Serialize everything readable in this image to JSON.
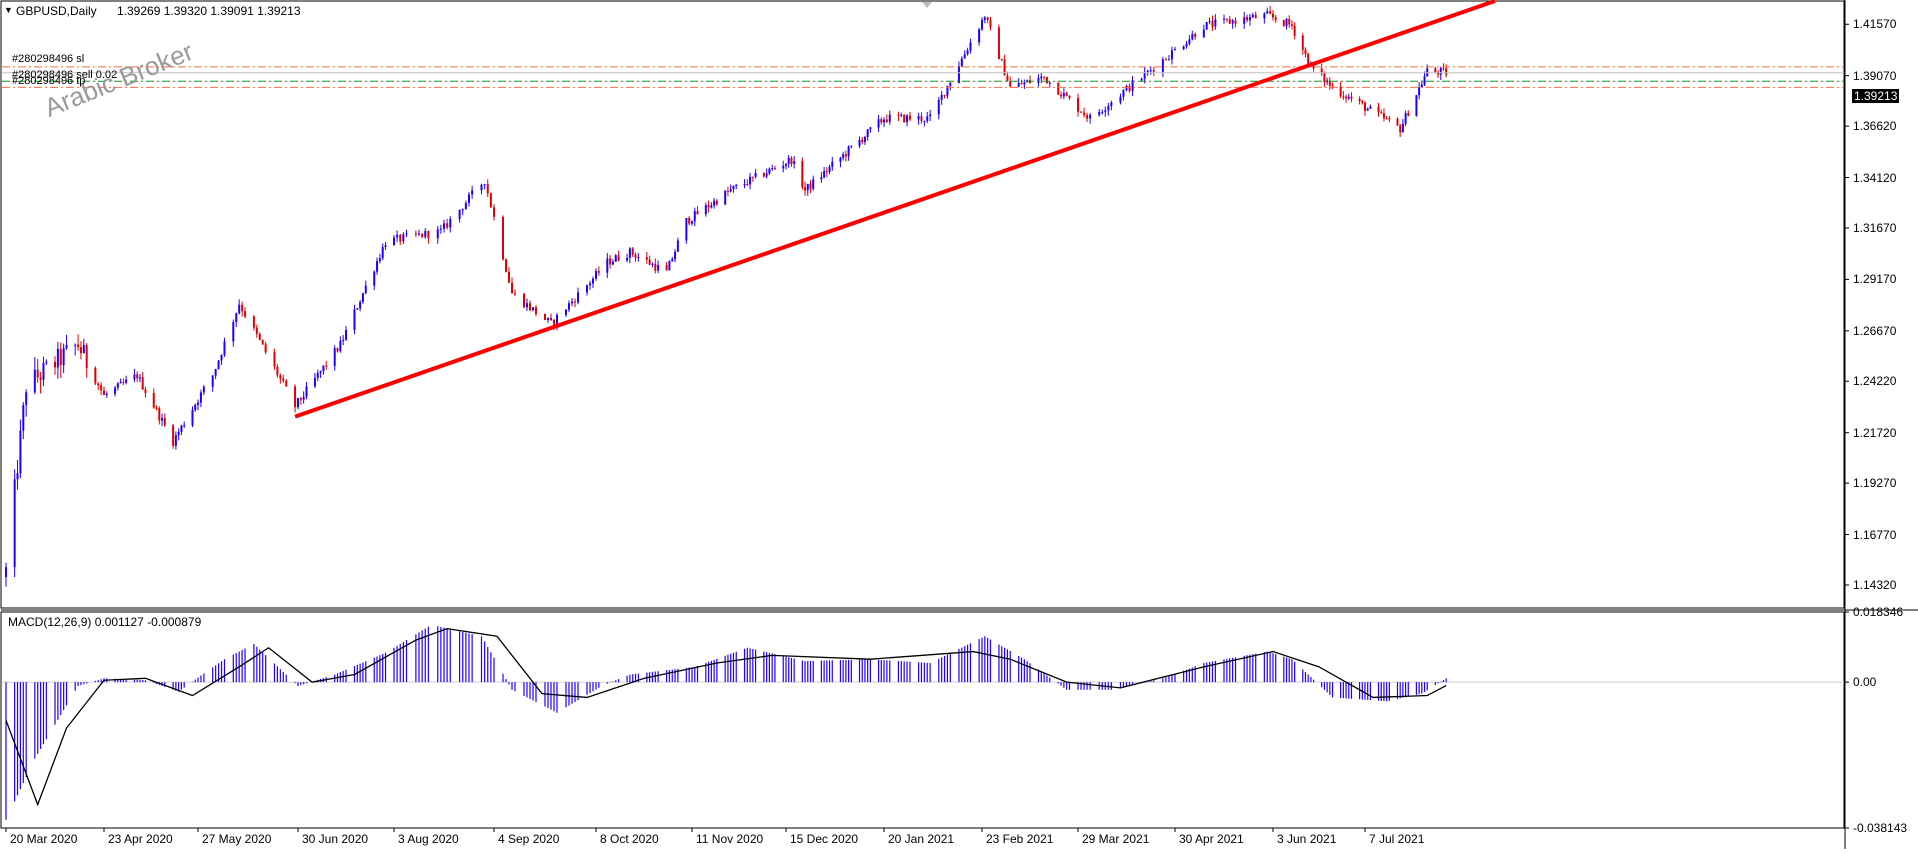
{
  "chart_data": [
    {
      "type": "candlestick",
      "symbol": "GBPUSD",
      "timeframe": "Daily",
      "header": {
        "title": "GBPUSD,Daily",
        "values": "1.39269 1.39320 1.39091 1.39213"
      },
      "ohlc_last": {
        "open": 1.39269,
        "high": 1.3932,
        "low": 1.39091,
        "close": 1.39213
      },
      "current_price": "1.39213",
      "ylim": [
        1.132,
        1.427
      ],
      "y_ticks": [
        "1.41570",
        "1.39070",
        "1.36620",
        "1.34120",
        "1.31670",
        "1.29170",
        "1.26670",
        "1.24220",
        "1.21720",
        "1.19270",
        "1.16770",
        "1.14320"
      ],
      "x_ticks": [
        "20 Mar 2020",
        "23 Apr 2020",
        "27 May 2020",
        "30 Jun 2020",
        "3 Aug 2020",
        "4 Sep 2020",
        "8 Oct 2020",
        "11 Nov 2020",
        "15 Dec 2020",
        "20 Jan 2021",
        "23 Feb 2021",
        "29 Mar 2021",
        "30 Apr 2021",
        "3 Jun 2021",
        "7 Jul 2021"
      ],
      "price_path": [
        [
          "2020-03-20",
          1.15
        ],
        [
          "2020-03-27",
          1.24
        ],
        [
          "2020-04-14",
          1.26
        ],
        [
          "2020-04-23",
          1.235
        ],
        [
          "2020-05-05",
          1.245
        ],
        [
          "2020-05-18",
          1.213
        ],
        [
          "2020-06-01",
          1.245
        ],
        [
          "2020-06-10",
          1.28
        ],
        [
          "2020-06-29",
          1.23
        ],
        [
          "2020-07-15",
          1.26
        ],
        [
          "2020-07-31",
          1.31
        ],
        [
          "2020-08-18",
          1.315
        ],
        [
          "2020-09-01",
          1.34
        ],
        [
          "2020-09-10",
          1.285
        ],
        [
          "2020-09-23",
          1.27
        ],
        [
          "2020-10-12",
          1.3
        ],
        [
          "2020-10-20",
          1.305
        ],
        [
          "2020-11-02",
          1.295
        ],
        [
          "2020-11-09",
          1.32
        ],
        [
          "2020-11-25",
          1.335
        ],
        [
          "2020-12-17",
          1.35
        ],
        [
          "2020-12-22",
          1.335
        ],
        [
          "2021-01-20",
          1.37
        ],
        [
          "2021-02-05",
          1.37
        ],
        [
          "2021-02-24",
          1.42
        ],
        [
          "2021-03-05",
          1.385
        ],
        [
          "2021-03-17",
          1.39
        ],
        [
          "2021-04-02",
          1.37
        ],
        [
          "2021-04-19",
          1.39
        ],
        [
          "2021-05-10",
          1.415
        ],
        [
          "2021-06-01",
          1.42
        ],
        [
          "2021-06-10",
          1.415
        ],
        [
          "2021-06-17",
          1.395
        ],
        [
          "2021-06-25",
          1.385
        ],
        [
          "2021-07-20",
          1.365
        ],
        [
          "2021-07-30",
          1.393
        ],
        [
          "2021-08-06",
          1.3921
        ]
      ],
      "trendline": {
        "color": "#ff0000",
        "from": [
          "2020-06-29",
          1.225
        ],
        "to": [
          "2021-08-24",
          1.427
        ]
      },
      "order_lines": [
        {
          "label": "#280298496 sl",
          "price": 1.395,
          "color": "#ff6a3d",
          "style": "dash-dot"
        },
        {
          "label": "#280298496 sell 0.02",
          "price": 1.388,
          "color": "#1a8a1a",
          "style": "dash-dot"
        },
        {
          "label": "#280298496 tp",
          "price": 1.385,
          "color": "#ff6a3d",
          "style": "dash-dot"
        }
      ],
      "colors": {
        "bull": "#1f00ff",
        "bear": "#e10000",
        "grid": "#c8c8c8"
      }
    },
    {
      "type": "macd",
      "header": {
        "title": "MACD(12,26,9) 0.001127 -0.000879"
      },
      "params": [
        12,
        26,
        9
      ],
      "main_value": 0.001127,
      "signal_value": -0.000879,
      "ylim": [
        -0.038143,
        0.018346
      ],
      "y_ticks": [
        "0.018346",
        "0.00",
        "-0.038143"
      ],
      "histogram_path": [
        [
          "2020-03-20",
          -0.036
        ],
        [
          "2020-03-30",
          -0.02
        ],
        [
          "2020-04-14",
          -0.001
        ],
        [
          "2020-04-23",
          0.001
        ],
        [
          "2020-05-08",
          0.0005
        ],
        [
          "2020-05-20",
          -0.0025
        ],
        [
          "2020-06-05",
          0.006
        ],
        [
          "2020-06-15",
          0.01
        ],
        [
          "2020-06-30",
          -0.001
        ],
        [
          "2020-07-13",
          0.002
        ],
        [
          "2020-08-01",
          0.008
        ],
        [
          "2020-08-15",
          0.015
        ],
        [
          "2020-08-31",
          0.012
        ],
        [
          "2020-09-10",
          -0.002
        ],
        [
          "2020-09-25",
          -0.008
        ],
        [
          "2020-10-10",
          -0.001
        ],
        [
          "2020-10-20",
          0.002
        ],
        [
          "2020-11-12",
          0.004
        ],
        [
          "2020-12-01",
          0.009
        ],
        [
          "2020-12-22",
          0.0055
        ],
        [
          "2021-01-15",
          0.006
        ],
        [
          "2021-02-05",
          0.005
        ],
        [
          "2021-02-24",
          0.012
        ],
        [
          "2021-03-10",
          0.006
        ],
        [
          "2021-03-25",
          -0.002
        ],
        [
          "2021-04-10",
          -0.002
        ],
        [
          "2021-04-26",
          0.001
        ],
        [
          "2021-05-10",
          0.005
        ],
        [
          "2021-06-01",
          0.008
        ],
        [
          "2021-06-10",
          0.006
        ],
        [
          "2021-06-25",
          -0.004
        ],
        [
          "2021-07-15",
          -0.005
        ],
        [
          "2021-07-28",
          -0.003
        ],
        [
          "2021-08-06",
          0.001
        ]
      ],
      "signal_path": [
        [
          "2020-03-20",
          -0.01
        ],
        [
          "2020-03-31",
          -0.032
        ],
        [
          "2020-04-10",
          -0.012
        ],
        [
          "2020-04-23",
          0.0005
        ],
        [
          "2020-05-08",
          0.001
        ],
        [
          "2020-05-25",
          -0.0035
        ],
        [
          "2020-06-10",
          0.004
        ],
        [
          "2020-06-20",
          0.009
        ],
        [
          "2020-07-05",
          0.0
        ],
        [
          "2020-07-20",
          0.002
        ],
        [
          "2020-08-10",
          0.011
        ],
        [
          "2020-08-20",
          0.014
        ],
        [
          "2020-09-05",
          0.012
        ],
        [
          "2020-09-20",
          -0.003
        ],
        [
          "2020-10-05",
          -0.004
        ],
        [
          "2020-10-25",
          0.001
        ],
        [
          "2020-11-20",
          0.005
        ],
        [
          "2020-12-10",
          0.007
        ],
        [
          "2021-01-15",
          0.006
        ],
        [
          "2021-02-20",
          0.008
        ],
        [
          "2021-03-05",
          0.006
        ],
        [
          "2021-03-25",
          0.0
        ],
        [
          "2021-04-12",
          -0.0015
        ],
        [
          "2021-05-10",
          0.004
        ],
        [
          "2021-06-03",
          0.008
        ],
        [
          "2021-06-20",
          0.004
        ],
        [
          "2021-07-10",
          -0.004
        ],
        [
          "2021-07-30",
          -0.0035
        ],
        [
          "2021-08-06",
          -0.0009
        ]
      ],
      "colors": {
        "histogram": "#1f00ff",
        "signal": "#000000"
      }
    }
  ],
  "watermark": "Arabic Broker",
  "current_price_label": "1.39213"
}
